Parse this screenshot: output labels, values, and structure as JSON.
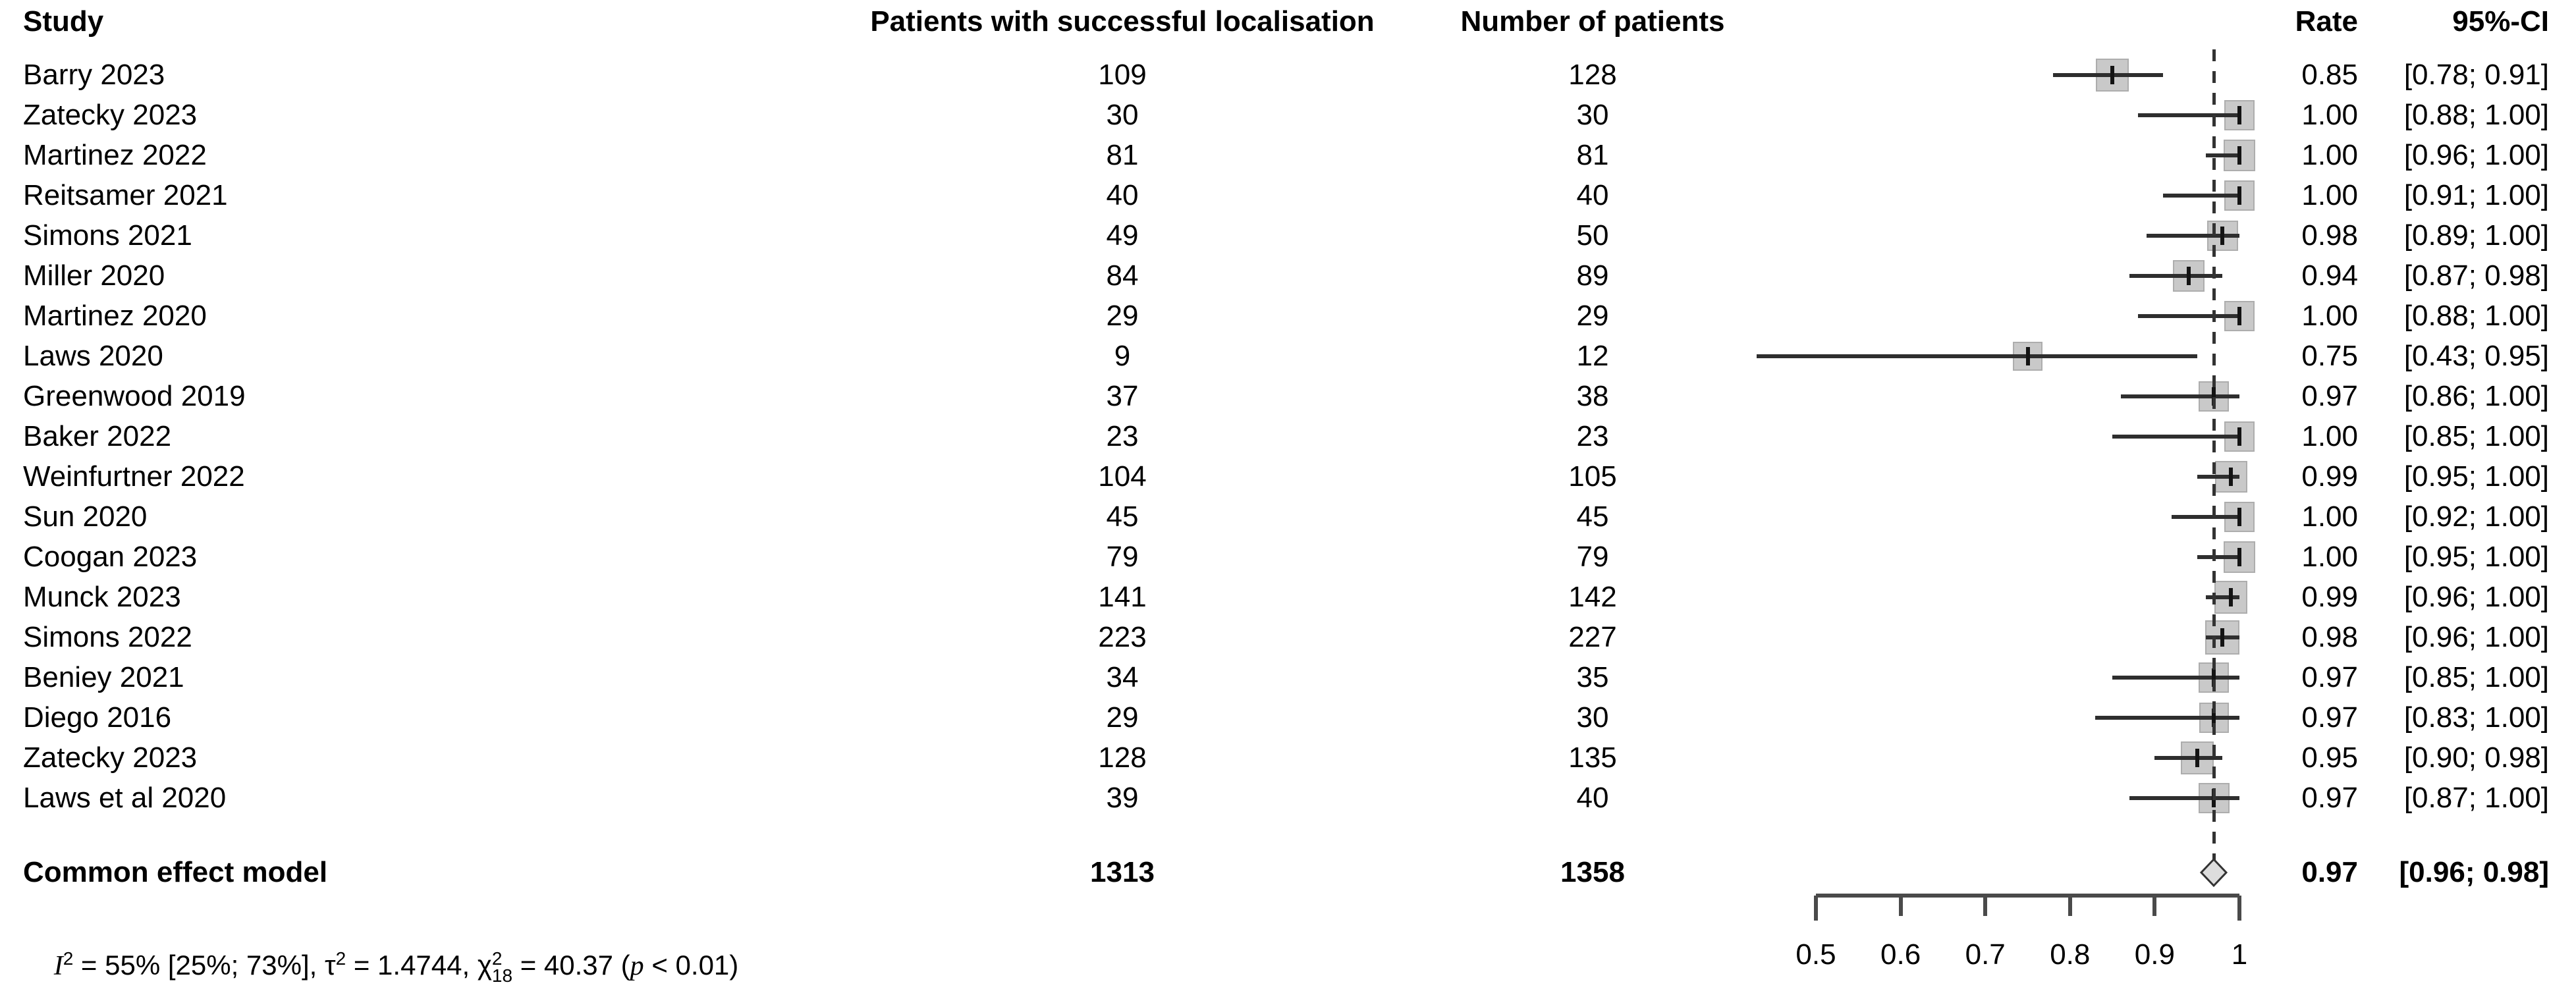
{
  "header": {
    "study": "Study",
    "events": "Patients with successful localisation",
    "total": "Number of patients",
    "rate": "Rate",
    "ci": "95%-CI"
  },
  "chart_data": {
    "type": "forest",
    "xlabel": "",
    "axis": {
      "range": [
        0.5,
        1.0
      ],
      "tick_values": [
        0.5,
        0.6,
        0.7,
        0.8,
        0.9,
        1.0
      ],
      "tick_labels": [
        "0.5",
        "0.6",
        "0.7",
        "0.8",
        "0.9",
        "1"
      ]
    },
    "studies": [
      {
        "name": "Barry 2023",
        "events": "109",
        "total": "128",
        "rate": "0.85",
        "ci": "[0.78; 0.91]",
        "rate_v": 0.85,
        "lo": 0.78,
        "hi": 0.91,
        "n": 128
      },
      {
        "name": "Zatecky 2023",
        "events": "30",
        "total": "30",
        "rate": "1.00",
        "ci": "[0.88; 1.00]",
        "rate_v": 1.0,
        "lo": 0.88,
        "hi": 1.0,
        "n": 30
      },
      {
        "name": "Martinez 2022",
        "events": "81",
        "total": "81",
        "rate": "1.00",
        "ci": "[0.96; 1.00]",
        "rate_v": 1.0,
        "lo": 0.96,
        "hi": 1.0,
        "n": 81
      },
      {
        "name": "Reitsamer 2021",
        "events": "40",
        "total": "40",
        "rate": "1.00",
        "ci": "[0.91; 1.00]",
        "rate_v": 1.0,
        "lo": 0.91,
        "hi": 1.0,
        "n": 40
      },
      {
        "name": "Simons 2021",
        "events": "49",
        "total": "50",
        "rate": "0.98",
        "ci": "[0.89; 1.00]",
        "rate_v": 0.98,
        "lo": 0.89,
        "hi": 1.0,
        "n": 50
      },
      {
        "name": "Miller 2020",
        "events": "84",
        "total": "89",
        "rate": "0.94",
        "ci": "[0.87; 0.98]",
        "rate_v": 0.94,
        "lo": 0.87,
        "hi": 0.98,
        "n": 89
      },
      {
        "name": "Martinez 2020",
        "events": "29",
        "total": "29",
        "rate": "1.00",
        "ci": "[0.88; 1.00]",
        "rate_v": 1.0,
        "lo": 0.88,
        "hi": 1.0,
        "n": 29
      },
      {
        "name": "Laws 2020",
        "events": "9",
        "total": "12",
        "rate": "0.75",
        "ci": "[0.43; 0.95]",
        "rate_v": 0.75,
        "lo": 0.43,
        "hi": 0.95,
        "n": 12
      },
      {
        "name": "Greenwood 2019",
        "events": "37",
        "total": "38",
        "rate": "0.97",
        "ci": "[0.86; 1.00]",
        "rate_v": 0.97,
        "lo": 0.86,
        "hi": 1.0,
        "n": 38
      },
      {
        "name": "Baker 2022",
        "events": "23",
        "total": "23",
        "rate": "1.00",
        "ci": "[0.85; 1.00]",
        "rate_v": 1.0,
        "lo": 0.85,
        "hi": 1.0,
        "n": 23
      },
      {
        "name": "Weinfurtner 2022",
        "events": "104",
        "total": "105",
        "rate": "0.99",
        "ci": "[0.95; 1.00]",
        "rate_v": 0.99,
        "lo": 0.95,
        "hi": 1.0,
        "n": 105
      },
      {
        "name": "Sun 2020",
        "events": "45",
        "total": "45",
        "rate": "1.00",
        "ci": "[0.92; 1.00]",
        "rate_v": 1.0,
        "lo": 0.92,
        "hi": 1.0,
        "n": 45
      },
      {
        "name": "Coogan 2023",
        "events": "79",
        "total": "79",
        "rate": "1.00",
        "ci": "[0.95; 1.00]",
        "rate_v": 1.0,
        "lo": 0.95,
        "hi": 1.0,
        "n": 79
      },
      {
        "name": "Munck 2023",
        "events": "141",
        "total": "142",
        "rate": "0.99",
        "ci": "[0.96; 1.00]",
        "rate_v": 0.99,
        "lo": 0.96,
        "hi": 1.0,
        "n": 142
      },
      {
        "name": "Simons 2022",
        "events": "223",
        "total": "227",
        "rate": "0.98",
        "ci": "[0.96; 1.00]",
        "rate_v": 0.98,
        "lo": 0.96,
        "hi": 1.0,
        "n": 227
      },
      {
        "name": "Beniey 2021",
        "events": "34",
        "total": "35",
        "rate": "0.97",
        "ci": "[0.85; 1.00]",
        "rate_v": 0.97,
        "lo": 0.85,
        "hi": 1.0,
        "n": 35
      },
      {
        "name": "Diego 2016",
        "events": "29",
        "total": "30",
        "rate": "0.97",
        "ci": "[0.83; 1.00]",
        "rate_v": 0.97,
        "lo": 0.83,
        "hi": 1.0,
        "n": 30
      },
      {
        "name": "Zatecky 2023",
        "events": "128",
        "total": "135",
        "rate": "0.95",
        "ci": "[0.90; 0.98]",
        "rate_v": 0.95,
        "lo": 0.9,
        "hi": 0.98,
        "n": 135
      },
      {
        "name": "Laws et al 2020",
        "events": "39",
        "total": "40",
        "rate": "0.97",
        "ci": "[0.87; 1.00]",
        "rate_v": 0.97,
        "lo": 0.87,
        "hi": 1.0,
        "n": 40
      }
    ],
    "pooled": {
      "label": "Common effect model",
      "events": "1313",
      "total": "1358",
      "rate": "0.97",
      "ci": "[0.96; 0.98]",
      "rate_v": 0.97,
      "lo": 0.96,
      "hi": 0.98
    },
    "heterogeneity": {
      "i_sym": "I",
      "i_sup": "2",
      "seg1": " = 55% [25%; 73%], ",
      "tau_sym": "τ",
      "tau_sup": "2",
      "seg2": " = 1.4744, ",
      "chi_sym": "χ",
      "chi_sup": "2",
      "chi_sub": "18",
      "seg3": " = 40.37 (",
      "p_sym": "p",
      "seg4": " < 0.01)"
    },
    "colors": {
      "square_fill": "#c9c9c9",
      "square_border": "#adadad",
      "ci_line": "#2e2e2e",
      "dashed_line": "#333333",
      "axis": "#4a4a4a",
      "diamond_fill": "#dddddd",
      "diamond_stroke": "#333333"
    }
  }
}
